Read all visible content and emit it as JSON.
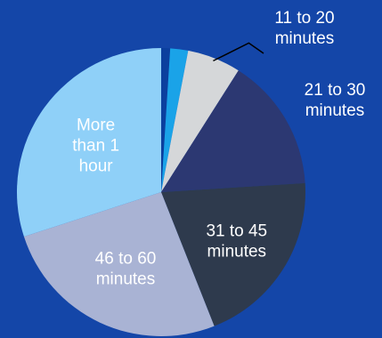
{
  "chart_data": {
    "type": "pie",
    "categories": [
      "",
      "",
      "11 to 20 minutes",
      "21 to 30 minutes",
      "31 to 45 minutes",
      "46 to 60 minutes",
      "More than 1 hour"
    ],
    "values": [
      1,
      2,
      6,
      15,
      20,
      26,
      30
    ],
    "colors": [
      "#0b3f9e",
      "#1aa3e8",
      "#d5d7d9",
      "#2c3872",
      "#2e3a4d",
      "#a9b3d4",
      "#8fd0f8"
    ],
    "label_text_colors": [
      "",
      "",
      "#ffffff",
      "#ffffff",
      "#ffffff",
      "#ffffff",
      "#ffffff"
    ],
    "labels": [
      {
        "lines": [],
        "placement": "none"
      },
      {
        "lines": [],
        "placement": "none"
      },
      {
        "lines": [
          "11 to 20",
          "minutes"
        ],
        "placement": "outside-leader"
      },
      {
        "lines": [
          "21 to 30",
          "minutes"
        ],
        "placement": "outside"
      },
      {
        "lines": [
          "31 to 45",
          "minutes"
        ],
        "placement": "inside"
      },
      {
        "lines": [
          "46 to 60",
          "minutes"
        ],
        "placement": "inside"
      },
      {
        "lines": [
          "More",
          "than 1",
          "hour"
        ],
        "placement": "inside"
      }
    ],
    "start_angle": "top (12 o'clock)",
    "direction": "clockwise",
    "title": "",
    "legend": "none"
  }
}
